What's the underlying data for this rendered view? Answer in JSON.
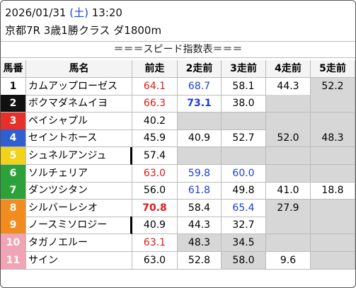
{
  "header": {
    "date": "2026/01/31",
    "weekday": "(土)",
    "time": "13:20",
    "race": "京都7R 3歳1勝クラス ダ1800m"
  },
  "title": "＝＝＝スピード指数表＝＝＝",
  "table": {
    "columns": [
      "馬番",
      "馬名",
      "前走",
      "2走前",
      "3走前",
      "4走前",
      "5走前"
    ],
    "rows": [
      [
        "1",
        "カムアップローゼス",
        "64.1",
        "68.7",
        "58.1",
        "44.3",
        "52.2"
      ],
      [
        "2",
        "ボクマダネムイヨ",
        "66.3",
        "73.1",
        "38.0",
        null,
        null
      ],
      [
        "3",
        "ペイシャプル",
        "40.2",
        null,
        null,
        null,
        null
      ],
      [
        "4",
        "セイントホース",
        "45.9",
        "40.9",
        "52.7",
        "52.0",
        "48.3"
      ],
      [
        "5",
        "シュネルアンジュ",
        "57.4",
        null,
        null,
        null,
        null
      ],
      [
        "6",
        "ソルチェリア",
        "63.0",
        "59.8",
        "60.0",
        null,
        null
      ],
      [
        "7",
        "ダンツシタン",
        "56.0",
        "61.8",
        "49.8",
        "41.0",
        "18.8"
      ],
      [
        "8",
        "シルバーレシオ",
        "70.8",
        "58.4",
        "65.4",
        "27.9",
        null
      ],
      [
        "9",
        "ノースミソロジー",
        "40.9",
        "44.3",
        "32.7",
        null,
        null
      ],
      [
        "10",
        "タガノエルー",
        "63.1",
        "48.3",
        "34.5",
        null,
        null
      ],
      [
        "11",
        "サイン",
        "63.0",
        "52.8",
        "58.0",
        "9.6",
        null
      ]
    ]
  }
}
